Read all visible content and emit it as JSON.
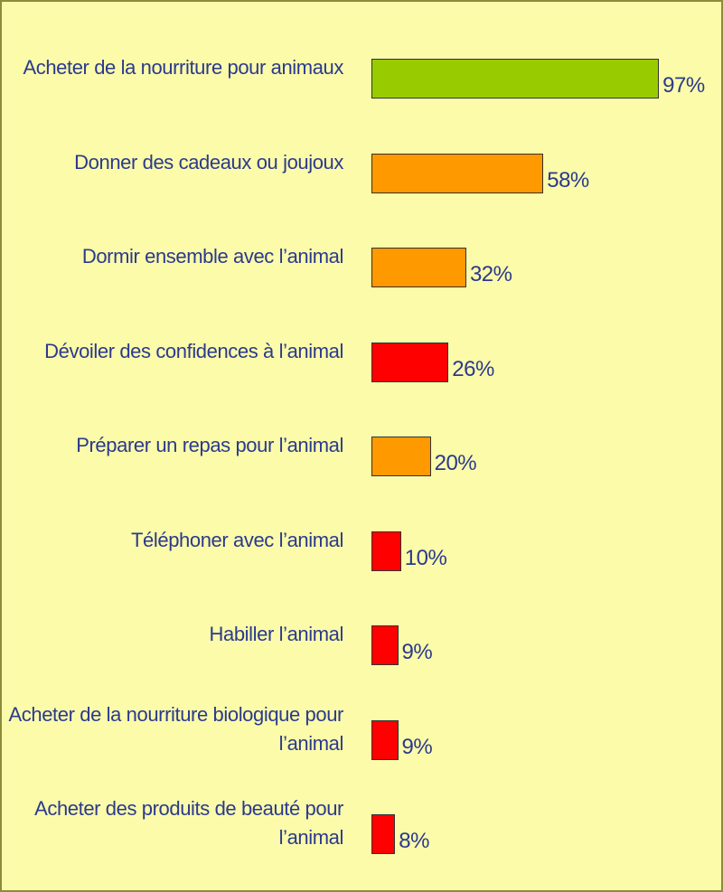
{
  "chart_data": {
    "type": "bar",
    "orientation": "horizontal",
    "categories": [
      "Acheter de la nourriture pour animaux",
      "Donner des cadeaux ou joujoux",
      "Dormir ensemble avec l’animal",
      "Dévoiler des confidences à l’animal",
      "Préparer un repas pour l’animal",
      "Téléphoner avec l’animal",
      "Habiller l’animal",
      "Acheter de la nourriture biologique pour l’animal",
      "Acheter des produits de beauté pour l’animal"
    ],
    "values": [
      97,
      58,
      32,
      26,
      20,
      10,
      9,
      9,
      8
    ],
    "value_labels": [
      "97%",
      "58%",
      "32%",
      "26%",
      "20%",
      "10%",
      "9%",
      "9%",
      "8%"
    ],
    "colors": [
      "#99cc00",
      "#ff9900",
      "#ff9900",
      "#ff0000",
      "#ff9900",
      "#ff0000",
      "#ff0000",
      "#ff0000",
      "#ff0000"
    ]
  }
}
